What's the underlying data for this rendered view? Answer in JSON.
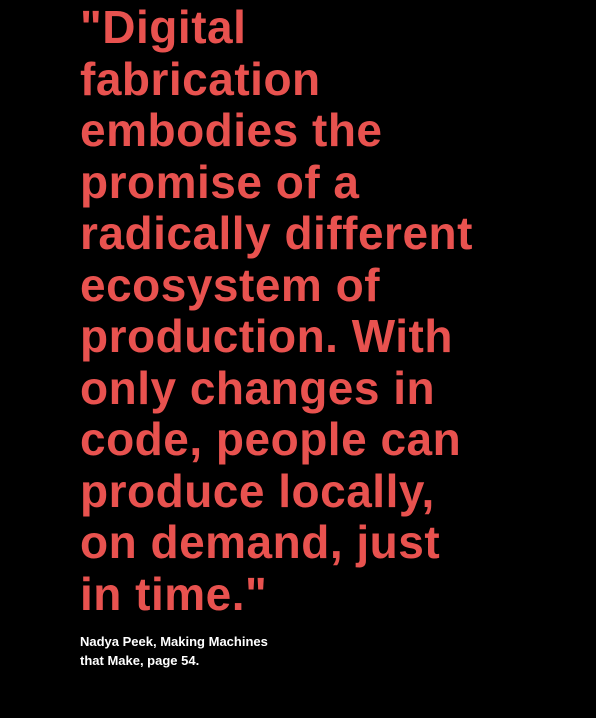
{
  "colors": {
    "background": "#000000",
    "quote": "#e8524f",
    "attribution": "#ffffff"
  },
  "quote": {
    "lines": [
      "\"Digital",
      "fabrication",
      "embodies the",
      "promise of a",
      "radically different",
      "ecosystem of",
      "production. With",
      "only changes in",
      "code, people can",
      "produce locally,",
      "on demand, just",
      "in time.\""
    ]
  },
  "attribution": {
    "lines": [
      "Nadya Peek, Making Machines",
      "that Make, page 54."
    ]
  }
}
